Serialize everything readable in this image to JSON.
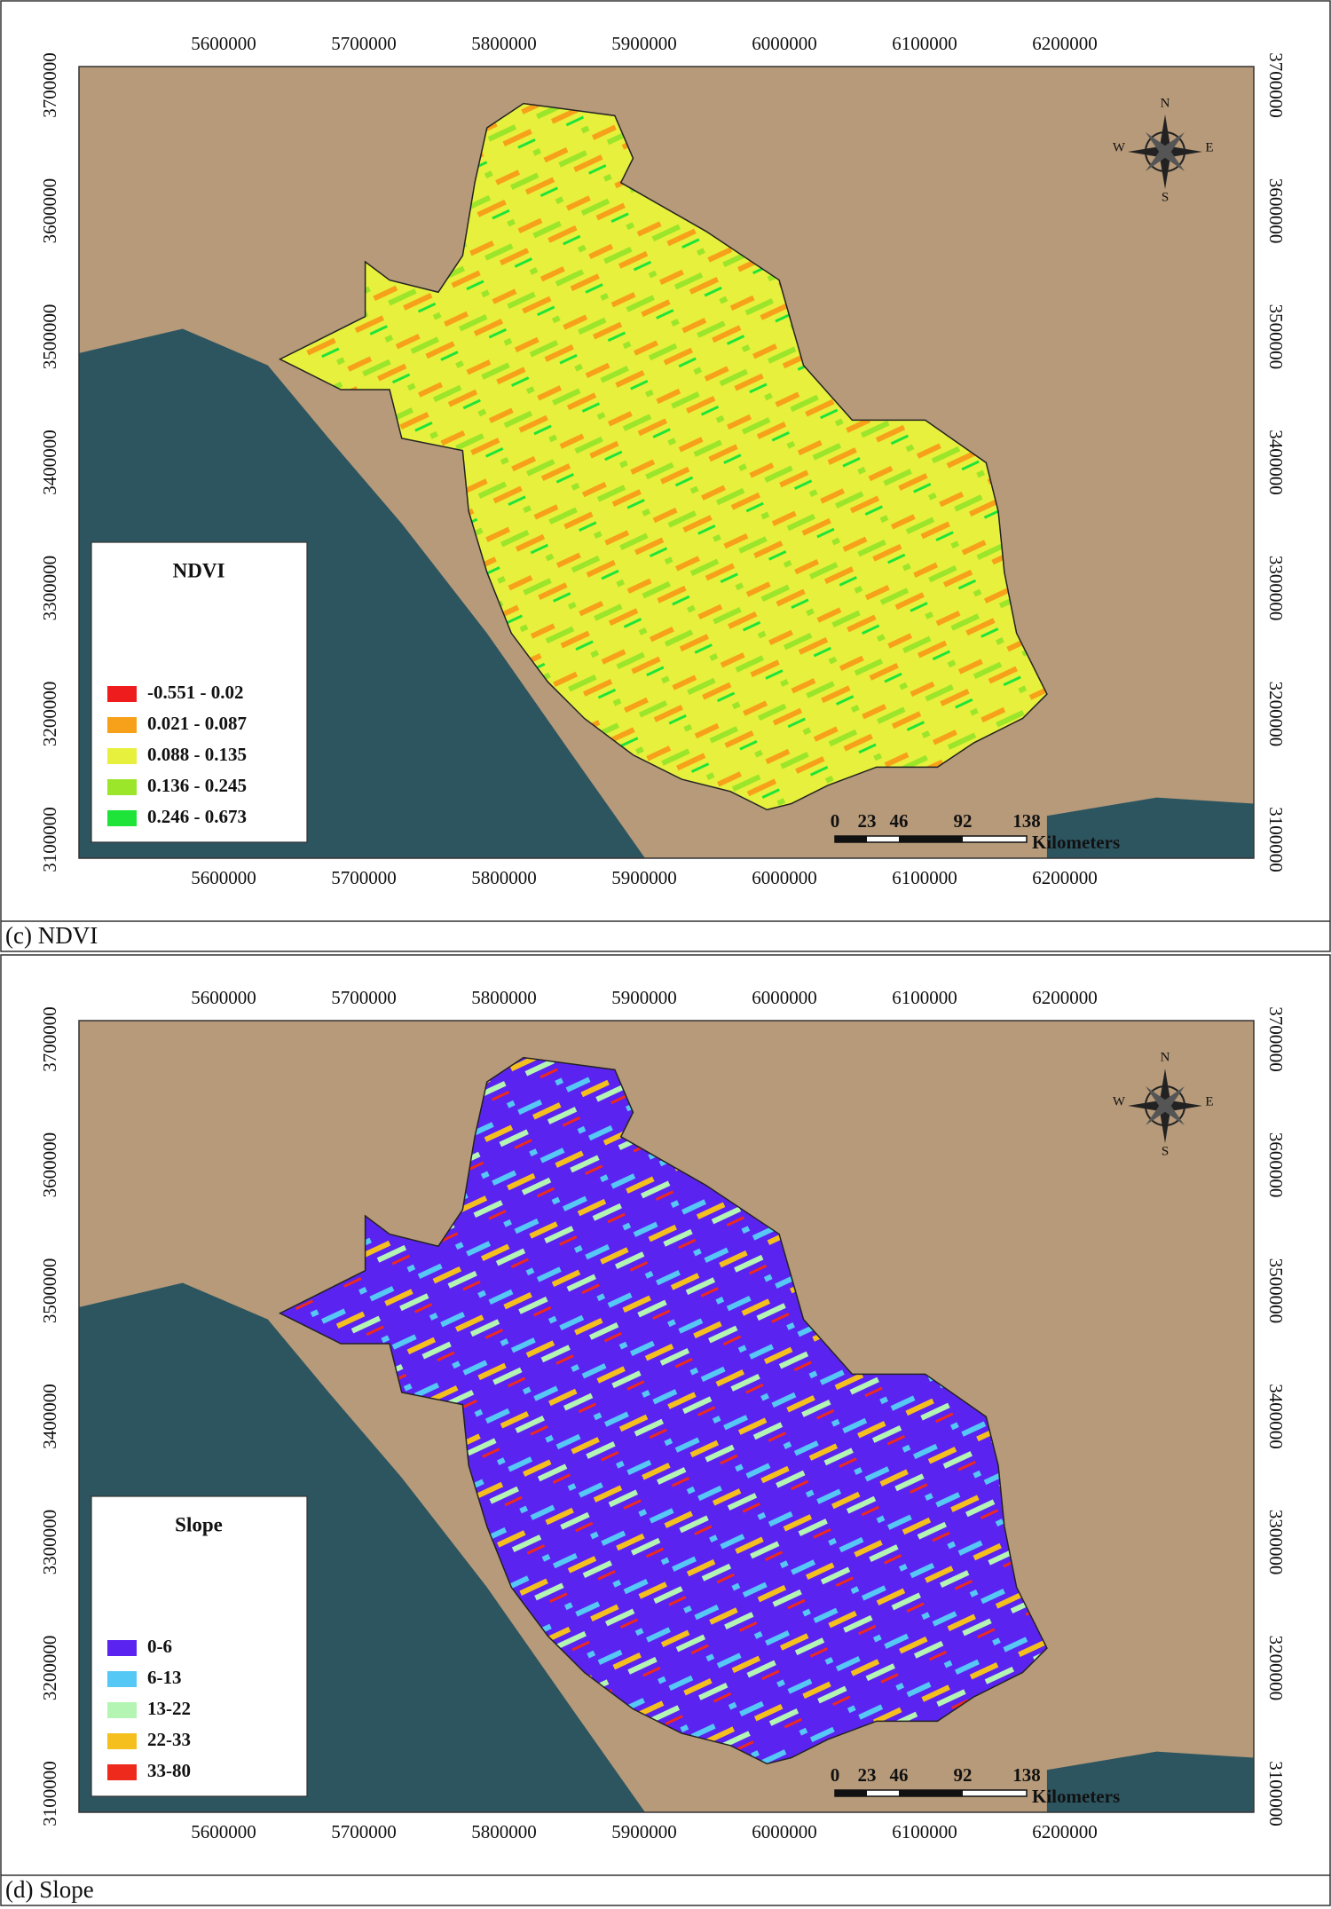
{
  "panels": [
    {
      "caption": "(c) NDVI",
      "legend": {
        "title": "NDVI",
        "items": [
          {
            "label": "-0.551 - 0.02",
            "color": "#ee1c1c"
          },
          {
            "label": "0.021 - 0.087",
            "color": "#f7a11a"
          },
          {
            "label": "0.088 - 0.135",
            "color": "#e7f03c"
          },
          {
            "label": "0.136 - 0.245",
            "color": "#9be52a"
          },
          {
            "label": "0.246 - 0.673",
            "color": "#1ee43a"
          }
        ]
      },
      "x_ticks": [
        5600000,
        5700000,
        5800000,
        5900000,
        6000000,
        6100000,
        6200000
      ],
      "y_ticks": [
        3100000,
        3200000,
        3300000,
        3400000,
        3500000,
        3600000,
        3700000
      ],
      "scale_bar": {
        "ticks": [
          0,
          23,
          46,
          92,
          138
        ],
        "unit": "Kilometers"
      },
      "compass": {
        "n": "N",
        "s": "S",
        "e": "E",
        "w": "W"
      }
    },
    {
      "caption": "(d) Slope",
      "legend": {
        "title": "Slope",
        "items": [
          {
            "label": "0-6",
            "color": "#5b23f0"
          },
          {
            "label": "6-13",
            "color": "#56c8f5"
          },
          {
            "label": "13-22",
            "color": "#b4f5b4"
          },
          {
            "label": "22-33",
            "color": "#f5c01e"
          },
          {
            "label": "33-80",
            "color": "#ee2a1c"
          }
        ]
      },
      "x_ticks": [
        5600000,
        5700000,
        5800000,
        5900000,
        6000000,
        6100000,
        6200000
      ],
      "y_ticks": [
        3100000,
        3200000,
        3300000,
        3400000,
        3500000,
        3600000,
        3700000
      ],
      "scale_bar": {
        "ticks": [
          0,
          23,
          46,
          92,
          138
        ],
        "unit": "Kilometers"
      },
      "compass": {
        "n": "N",
        "s": "S",
        "e": "E",
        "w": "W"
      }
    }
  ]
}
